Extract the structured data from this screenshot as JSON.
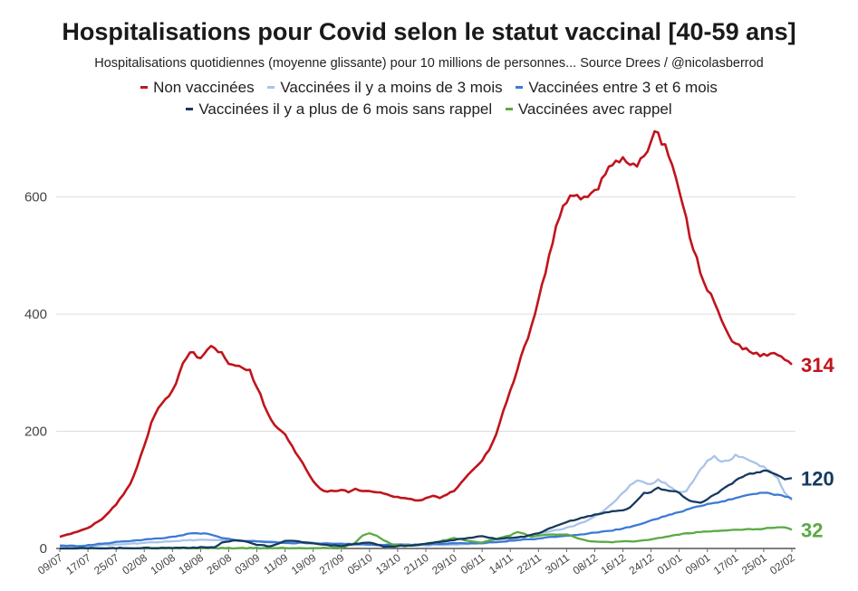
{
  "chart_data": {
    "type": "line",
    "title": "Hospitalisations pour Covid selon le statut vaccinal [40-59 ans]",
    "subtitle": "Hospitalisations quotidiennes (moyenne glissante) pour 10 millions de personnes... Source Drees / @nicolasberrod",
    "legend_position": "top",
    "grid": true,
    "ylim": [
      0,
      720
    ],
    "yticks": [
      0,
      200,
      400,
      600
    ],
    "ytick_labels": [
      "0",
      "200",
      "400",
      "600"
    ],
    "x_start": "09/07",
    "x_end": "05/02",
    "xticks": [
      {
        "day": 0,
        "label": "09/07"
      },
      {
        "day": 8,
        "label": "17/07"
      },
      {
        "day": 16,
        "label": "25/07"
      },
      {
        "day": 24,
        "label": "02/08"
      },
      {
        "day": 32,
        "label": "10/08"
      },
      {
        "day": 40,
        "label": "18/08"
      },
      {
        "day": 48,
        "label": "26/08"
      },
      {
        "day": 56,
        "label": "03/09"
      },
      {
        "day": 64,
        "label": "11/09"
      },
      {
        "day": 72,
        "label": "19/09"
      },
      {
        "day": 80,
        "label": "27/09"
      },
      {
        "day": 88,
        "label": "05/10"
      },
      {
        "day": 96,
        "label": "13/10"
      },
      {
        "day": 104,
        "label": "21/10"
      },
      {
        "day": 112,
        "label": "29/10"
      },
      {
        "day": 120,
        "label": "06/11"
      },
      {
        "day": 128,
        "label": "14/11"
      },
      {
        "day": 136,
        "label": "22/11"
      },
      {
        "day": 144,
        "label": "30/11"
      },
      {
        "day": 152,
        "label": "08/12"
      },
      {
        "day": 160,
        "label": "16/12"
      },
      {
        "day": 168,
        "label": "24/12"
      },
      {
        "day": 176,
        "label": "01/01"
      },
      {
        "day": 184,
        "label": "09/01"
      },
      {
        "day": 192,
        "label": "17/01"
      },
      {
        "day": 200,
        "label": "25/01"
      },
      {
        "day": 208,
        "label": "02/02"
      }
    ],
    "series": [
      {
        "name": "Non vaccinées",
        "color": "#c0141c",
        "end_label": "314",
        "points": [
          [
            0,
            20
          ],
          [
            4,
            27
          ],
          [
            8,
            35
          ],
          [
            12,
            50
          ],
          [
            16,
            75
          ],
          [
            20,
            110
          ],
          [
            22,
            140
          ],
          [
            24,
            175
          ],
          [
            26,
            215
          ],
          [
            28,
            240
          ],
          [
            30,
            255
          ],
          [
            32,
            270
          ],
          [
            34,
            300
          ],
          [
            36,
            325
          ],
          [
            38,
            335
          ],
          [
            40,
            325
          ],
          [
            42,
            340
          ],
          [
            44,
            342
          ],
          [
            46,
            335
          ],
          [
            48,
            315
          ],
          [
            50,
            312
          ],
          [
            52,
            308
          ],
          [
            54,
            305
          ],
          [
            56,
            275
          ],
          [
            58,
            245
          ],
          [
            60,
            220
          ],
          [
            62,
            205
          ],
          [
            64,
            195
          ],
          [
            66,
            175
          ],
          [
            68,
            155
          ],
          [
            70,
            135
          ],
          [
            72,
            115
          ],
          [
            74,
            102
          ],
          [
            76,
            97
          ],
          [
            78,
            98
          ],
          [
            80,
            100
          ],
          [
            82,
            96
          ],
          [
            84,
            102
          ],
          [
            86,
            98
          ],
          [
            88,
            98
          ],
          [
            90,
            96
          ],
          [
            92,
            94
          ],
          [
            94,
            90
          ],
          [
            96,
            88
          ],
          [
            98,
            86
          ],
          [
            100,
            84
          ],
          [
            102,
            82
          ],
          [
            104,
            86
          ],
          [
            106,
            90
          ],
          [
            108,
            86
          ],
          [
            110,
            92
          ],
          [
            112,
            98
          ],
          [
            114,
            112
          ],
          [
            116,
            126
          ],
          [
            118,
            138
          ],
          [
            120,
            150
          ],
          [
            122,
            168
          ],
          [
            124,
            195
          ],
          [
            126,
            235
          ],
          [
            128,
            270
          ],
          [
            130,
            305
          ],
          [
            132,
            345
          ],
          [
            134,
            380
          ],
          [
            136,
            425
          ],
          [
            138,
            470
          ],
          [
            140,
            520
          ],
          [
            142,
            565
          ],
          [
            144,
            590
          ],
          [
            146,
            602
          ],
          [
            148,
            596
          ],
          [
            150,
            600
          ],
          [
            152,
            612
          ],
          [
            154,
            632
          ],
          [
            156,
            652
          ],
          [
            158,
            662
          ],
          [
            160,
            668
          ],
          [
            162,
            655
          ],
          [
            164,
            652
          ],
          [
            166,
            670
          ],
          [
            168,
            695
          ],
          [
            170,
            710
          ],
          [
            172,
            690
          ],
          [
            174,
            655
          ],
          [
            176,
            610
          ],
          [
            178,
            565
          ],
          [
            180,
            510
          ],
          [
            182,
            470
          ],
          [
            184,
            440
          ],
          [
            186,
            420
          ],
          [
            188,
            390
          ],
          [
            190,
            365
          ],
          [
            192,
            350
          ],
          [
            194,
            340
          ],
          [
            196,
            336
          ],
          [
            198,
            334
          ],
          [
            200,
            332
          ],
          [
            202,
            333
          ],
          [
            204,
            330
          ],
          [
            206,
            322
          ],
          [
            208,
            314
          ]
        ]
      },
      {
        "name": "Vaccinées il y a moins de 3 mois",
        "color": "#a9c4ea",
        "end_label": "",
        "points": [
          [
            0,
            3
          ],
          [
            10,
            5
          ],
          [
            20,
            8
          ],
          [
            30,
            12
          ],
          [
            40,
            15
          ],
          [
            50,
            13
          ],
          [
            60,
            12
          ],
          [
            70,
            10
          ],
          [
            80,
            8
          ],
          [
            90,
            6
          ],
          [
            100,
            5
          ],
          [
            110,
            6
          ],
          [
            120,
            8
          ],
          [
            126,
            12
          ],
          [
            130,
            18
          ],
          [
            134,
            22
          ],
          [
            138,
            28
          ],
          [
            142,
            32
          ],
          [
            146,
            38
          ],
          [
            150,
            48
          ],
          [
            154,
            62
          ],
          [
            158,
            82
          ],
          [
            160,
            95
          ],
          [
            162,
            108
          ],
          [
            164,
            116
          ],
          [
            166,
            113
          ],
          [
            168,
            110
          ],
          [
            170,
            118
          ],
          [
            172,
            112
          ],
          [
            174,
            103
          ],
          [
            176,
            96
          ],
          [
            178,
            98
          ],
          [
            180,
            115
          ],
          [
            182,
            135
          ],
          [
            184,
            150
          ],
          [
            186,
            158
          ],
          [
            188,
            148
          ],
          [
            190,
            150
          ],
          [
            192,
            160
          ],
          [
            194,
            156
          ],
          [
            196,
            150
          ],
          [
            198,
            145
          ],
          [
            200,
            140
          ],
          [
            202,
            132
          ],
          [
            204,
            120
          ],
          [
            206,
            95
          ],
          [
            208,
            82
          ]
        ]
      },
      {
        "name": "Vaccinées entre 3 et 6 mois",
        "color": "#3d7ad4",
        "end_label": "",
        "points": [
          [
            0,
            5
          ],
          [
            6,
            4
          ],
          [
            12,
            8
          ],
          [
            18,
            12
          ],
          [
            22,
            14
          ],
          [
            26,
            16
          ],
          [
            30,
            18
          ],
          [
            34,
            22
          ],
          [
            38,
            26
          ],
          [
            42,
            25
          ],
          [
            46,
            18
          ],
          [
            50,
            14
          ],
          [
            56,
            12
          ],
          [
            62,
            10
          ],
          [
            70,
            9
          ],
          [
            78,
            8
          ],
          [
            86,
            7
          ],
          [
            94,
            6
          ],
          [
            102,
            7
          ],
          [
            110,
            8
          ],
          [
            118,
            9
          ],
          [
            124,
            11
          ],
          [
            130,
            14
          ],
          [
            136,
            17
          ],
          [
            140,
            20
          ],
          [
            144,
            22
          ],
          [
            148,
            24
          ],
          [
            152,
            27
          ],
          [
            156,
            30
          ],
          [
            160,
            34
          ],
          [
            164,
            40
          ],
          [
            168,
            48
          ],
          [
            172,
            55
          ],
          [
            176,
            62
          ],
          [
            180,
            70
          ],
          [
            184,
            76
          ],
          [
            188,
            80
          ],
          [
            192,
            86
          ],
          [
            196,
            92
          ],
          [
            200,
            95
          ],
          [
            204,
            92
          ],
          [
            208,
            85
          ]
        ]
      },
      {
        "name": "Vaccinées il y a plus de 6 mois sans rappel",
        "color": "#16395e",
        "end_label": "120",
        "points": [
          [
            0,
            0
          ],
          [
            30,
            1
          ],
          [
            44,
            2
          ],
          [
            46,
            10
          ],
          [
            50,
            14
          ],
          [
            52,
            13
          ],
          [
            54,
            10
          ],
          [
            56,
            6
          ],
          [
            60,
            4
          ],
          [
            62,
            8
          ],
          [
            64,
            13
          ],
          [
            68,
            12
          ],
          [
            72,
            9
          ],
          [
            76,
            6
          ],
          [
            80,
            4
          ],
          [
            84,
            8
          ],
          [
            88,
            10
          ],
          [
            90,
            7
          ],
          [
            92,
            3
          ],
          [
            96,
            4
          ],
          [
            100,
            5
          ],
          [
            104,
            8
          ],
          [
            108,
            11
          ],
          [
            112,
            14
          ],
          [
            116,
            18
          ],
          [
            120,
            21
          ],
          [
            124,
            16
          ],
          [
            128,
            18
          ],
          [
            132,
            20
          ],
          [
            136,
            26
          ],
          [
            140,
            36
          ],
          [
            144,
            45
          ],
          [
            148,
            52
          ],
          [
            152,
            58
          ],
          [
            156,
            62
          ],
          [
            160,
            65
          ],
          [
            162,
            70
          ],
          [
            164,
            82
          ],
          [
            166,
            95
          ],
          [
            168,
            96
          ],
          [
            170,
            104
          ],
          [
            172,
            100
          ],
          [
            174,
            98
          ],
          [
            176,
            95
          ],
          [
            178,
            85
          ],
          [
            180,
            80
          ],
          [
            182,
            78
          ],
          [
            184,
            84
          ],
          [
            186,
            92
          ],
          [
            188,
            100
          ],
          [
            190,
            108
          ],
          [
            192,
            116
          ],
          [
            194,
            122
          ],
          [
            196,
            128
          ],
          [
            198,
            130
          ],
          [
            200,
            133
          ],
          [
            202,
            130
          ],
          [
            204,
            125
          ],
          [
            206,
            118
          ],
          [
            208,
            120
          ]
        ]
      },
      {
        "name": "Vaccinées avec rappel",
        "color": "#5aaa45",
        "end_label": "32",
        "points": [
          [
            0,
            0
          ],
          [
            80,
            1
          ],
          [
            84,
            10
          ],
          [
            86,
            22
          ],
          [
            88,
            26
          ],
          [
            90,
            22
          ],
          [
            92,
            14
          ],
          [
            94,
            8
          ],
          [
            96,
            6
          ],
          [
            100,
            5
          ],
          [
            104,
            8
          ],
          [
            108,
            12
          ],
          [
            112,
            18
          ],
          [
            116,
            13
          ],
          [
            120,
            10
          ],
          [
            124,
            16
          ],
          [
            128,
            22
          ],
          [
            130,
            28
          ],
          [
            132,
            25
          ],
          [
            134,
            20
          ],
          [
            136,
            22
          ],
          [
            140,
            24
          ],
          [
            144,
            24
          ],
          [
            146,
            20
          ],
          [
            148,
            16
          ],
          [
            150,
            13
          ],
          [
            156,
            11
          ],
          [
            162,
            12
          ],
          [
            166,
            14
          ],
          [
            170,
            18
          ],
          [
            174,
            22
          ],
          [
            178,
            26
          ],
          [
            182,
            28
          ],
          [
            186,
            30
          ],
          [
            190,
            31
          ],
          [
            194,
            32
          ],
          [
            198,
            33
          ],
          [
            202,
            35
          ],
          [
            206,
            36
          ],
          [
            208,
            32
          ]
        ]
      }
    ]
  }
}
